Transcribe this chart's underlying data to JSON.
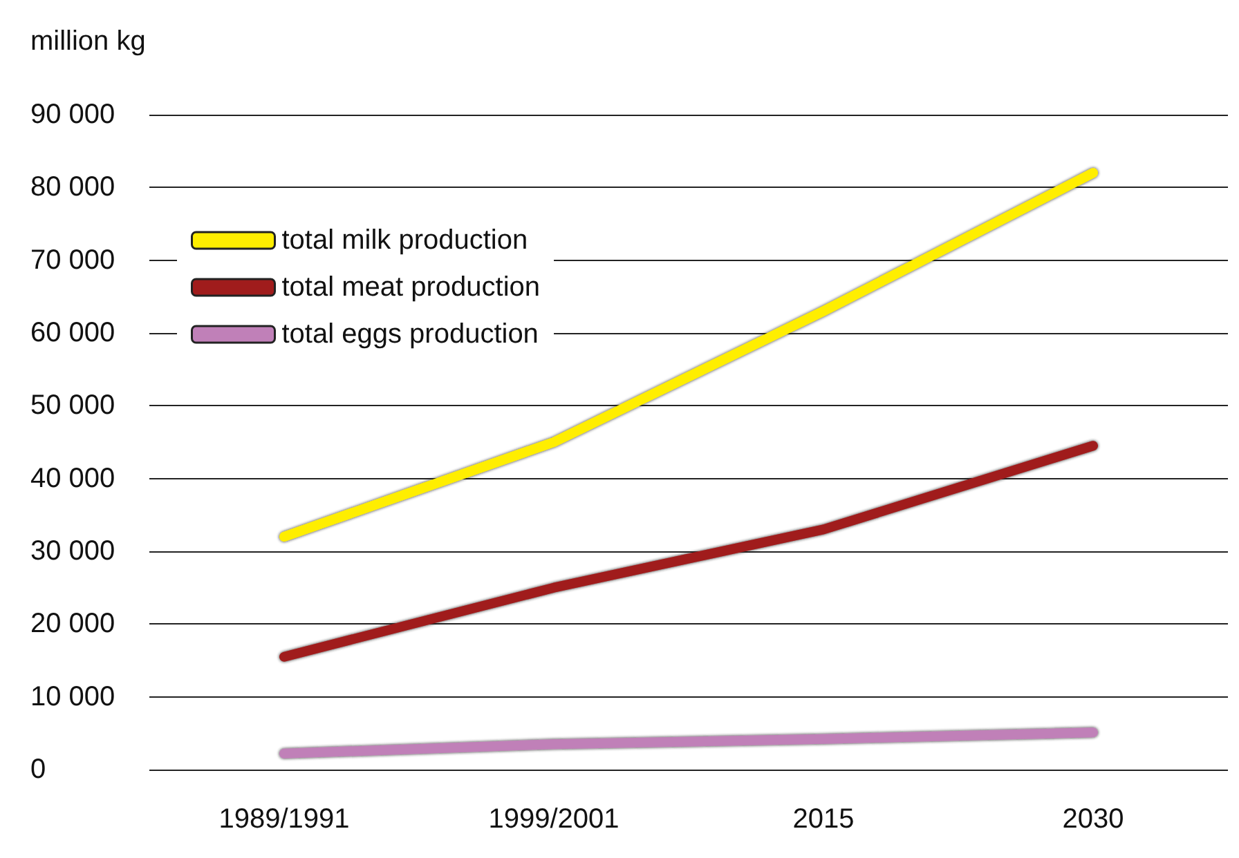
{
  "chart_data": {
    "type": "line",
    "ylabel": "million kg",
    "categories": [
      "1989/1991",
      "1999/2001",
      "2015",
      "2030"
    ],
    "series": [
      {
        "name": "total milk production",
        "color": "#ffee00",
        "values": [
          32000,
          45000,
          63000,
          82000
        ]
      },
      {
        "name": "total meat production",
        "color": "#a01c1c",
        "values": [
          15500,
          25000,
          33000,
          44500
        ]
      },
      {
        "name": "total eggs production",
        "color": "#c080b8",
        "values": [
          2200,
          3500,
          4200,
          5100
        ]
      }
    ],
    "ylim": [
      0,
      90000
    ],
    "yticks": [
      {
        "value": 0,
        "label": "0"
      },
      {
        "value": 10000,
        "label": "10 000"
      },
      {
        "value": 20000,
        "label": "20 000"
      },
      {
        "value": 30000,
        "label": "30 000"
      },
      {
        "value": 40000,
        "label": "40 000"
      },
      {
        "value": 50000,
        "label": "50 000"
      },
      {
        "value": 60000,
        "label": "60 000"
      },
      {
        "value": 70000,
        "label": "70 000"
      },
      {
        "value": 80000,
        "label": "80 000"
      },
      {
        "value": 90000,
        "label": "90 000"
      }
    ],
    "grid": "y",
    "legend": "top left",
    "line_style": "solid"
  }
}
